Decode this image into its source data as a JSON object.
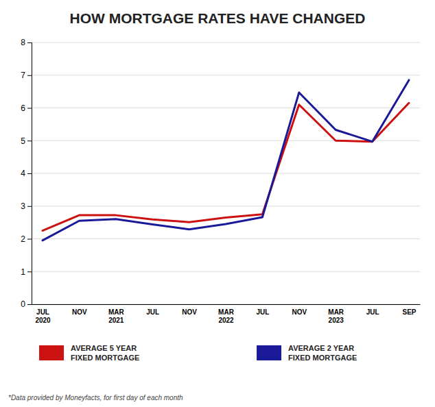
{
  "chart_data": {
    "type": "line",
    "title": "HOW MORTGAGE RATES HAVE CHANGED",
    "annotations": [
      "*Data provided by Moneyfacts, for first day of each month"
    ],
    "categories": [
      "JUL\n2020",
      "NOV",
      "MAR\n2021",
      "JUL",
      "NOV",
      "MAR\n2022",
      "JUL",
      "NOV",
      "MAR\n2023",
      "JUL",
      "SEP"
    ],
    "series": [
      {
        "name": "AVERAGE 5 YEAR\nFIXED MORTGAGE",
        "color": "#cc1111",
        "values": [
          2.25,
          2.72,
          2.72,
          2.59,
          2.51,
          2.65,
          2.75,
          6.1,
          5.0,
          4.97,
          6.15
        ]
      },
      {
        "name": "AVERAGE 2 YEAR\nFIXED MORTGAGE",
        "color": "#1a1a99",
        "values": [
          1.95,
          2.55,
          2.6,
          2.44,
          2.29,
          2.45,
          2.66,
          6.47,
          5.33,
          4.97,
          6.85
        ]
      }
    ],
    "ylim": [
      0,
      8
    ],
    "yticks": [
      0,
      1,
      2,
      3,
      4,
      5,
      6,
      7,
      8
    ],
    "grid": true,
    "legend": "bottom"
  }
}
